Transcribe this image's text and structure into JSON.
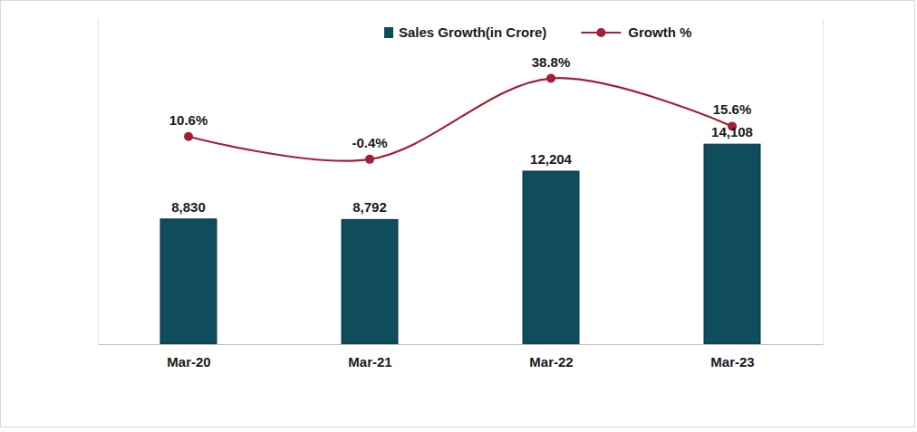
{
  "chart_data": {
    "type": "bar",
    "categories": [
      "Mar-20",
      "Mar-21",
      "Mar-22",
      "Mar-23"
    ],
    "series": [
      {
        "name": "Sales Growth(in Crore)",
        "type": "bar",
        "color": "#0f4c5c",
        "values": [
          8830,
          8792,
          12204,
          14108
        ],
        "value_labels": [
          "8,830",
          "8,792",
          "12,204",
          "14,108"
        ]
      },
      {
        "name": "Growth %",
        "type": "line",
        "axis": "y2",
        "color": "#a31f34",
        "marker": "circle",
        "values": [
          10.6,
          -0.4,
          38.8,
          15.6
        ],
        "value_labels": [
          "10.6%",
          "-0.4%",
          "38.8%",
          "15.6%"
        ]
      }
    ],
    "ylim": [
      0,
      23000
    ],
    "y2lim": [
      -90,
      68
    ],
    "data_labels": true,
    "legend": "top",
    "tick_labels": "x"
  }
}
